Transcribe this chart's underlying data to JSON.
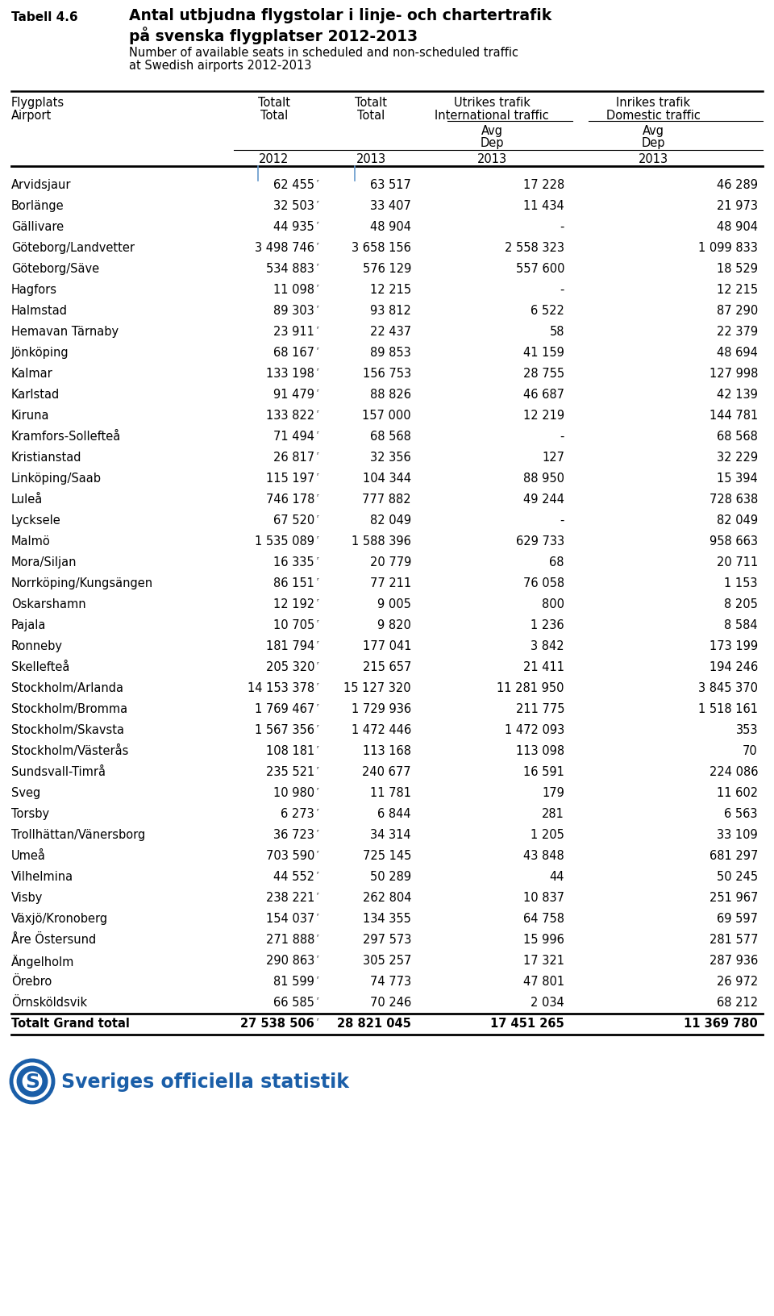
{
  "title_line1": "Antal utbjudna flygstolar i linje- och chartertrafik",
  "title_line2": "på svenska flygplatser 2012-2013",
  "subtitle1": "Number of available seats in scheduled and non-scheduled traffic",
  "subtitle2": "at Swedish airports 2012-2013",
  "table_label": "Tabell 4.6",
  "rows": [
    [
      "Arvidsjaur",
      "62 455",
      "r",
      "63 517",
      "17 228",
      "46 289"
    ],
    [
      "Borlänge",
      "32 503",
      "r",
      "33 407",
      "11 434",
      "21 973"
    ],
    [
      "Gällivare",
      "44 935",
      "r",
      "48 904",
      "-",
      "48 904"
    ],
    [
      "Göteborg/Landvetter",
      "3 498 746",
      "r",
      "3 658 156",
      "2 558 323",
      "1 099 833"
    ],
    [
      "Göteborg/Säve",
      "534 883",
      "r",
      "576 129",
      "557 600",
      "18 529"
    ],
    [
      "Hagfors",
      "11 098",
      "r",
      "12 215",
      "-",
      "12 215"
    ],
    [
      "Halmstad",
      "89 303",
      "r",
      "93 812",
      "6 522",
      "87 290"
    ],
    [
      "Hemavan Tärnaby",
      "23 911",
      "r",
      "22 437",
      "58",
      "22 379"
    ],
    [
      "Jönköping",
      "68 167",
      "r",
      "89 853",
      "41 159",
      "48 694"
    ],
    [
      "Kalmar",
      "133 198",
      "r",
      "156 753",
      "28 755",
      "127 998"
    ],
    [
      "Karlstad",
      "91 479",
      "r",
      "88 826",
      "46 687",
      "42 139"
    ],
    [
      "Kiruna",
      "133 822",
      "r",
      "157 000",
      "12 219",
      "144 781"
    ],
    [
      "Kramfors-Sollefteå",
      "71 494",
      "r",
      "68 568",
      "-",
      "68 568"
    ],
    [
      "Kristianstad",
      "26 817",
      "r",
      "32 356",
      "127",
      "32 229"
    ],
    [
      "Linköping/Saab",
      "115 197",
      "r",
      "104 344",
      "88 950",
      "15 394"
    ],
    [
      "Luleå",
      "746 178",
      "r",
      "777 882",
      "49 244",
      "728 638"
    ],
    [
      "Lycksele",
      "67 520",
      "r",
      "82 049",
      "-",
      "82 049"
    ],
    [
      "Malmö",
      "1 535 089",
      "r",
      "1 588 396",
      "629 733",
      "958 663"
    ],
    [
      "Mora/Siljan",
      "16 335",
      "r",
      "20 779",
      "68",
      "20 711"
    ],
    [
      "Norrköping/Kungsängen",
      "86 151",
      "r",
      "77 211",
      "76 058",
      "1 153"
    ],
    [
      "Oskarshamn",
      "12 192",
      "r",
      "9 005",
      "800",
      "8 205"
    ],
    [
      "Pajala",
      "10 705",
      "r",
      "9 820",
      "1 236",
      "8 584"
    ],
    [
      "Ronneby",
      "181 794",
      "r",
      "177 041",
      "3 842",
      "173 199"
    ],
    [
      "Skellefteå",
      "205 320",
      "r",
      "215 657",
      "21 411",
      "194 246"
    ],
    [
      "Stockholm/Arlanda",
      "14 153 378",
      "r",
      "15 127 320",
      "11 281 950",
      "3 845 370"
    ],
    [
      "Stockholm/Bromma",
      "1 769 467",
      "r",
      "1 729 936",
      "211 775",
      "1 518 161"
    ],
    [
      "Stockholm/Skavsta",
      "1 567 356",
      "r",
      "1 472 446",
      "1 472 093",
      "353"
    ],
    [
      "Stockholm/Västerås",
      "108 181",
      "r",
      "113 168",
      "113 098",
      "70"
    ],
    [
      "Sundsvall-Timrå",
      "235 521",
      "r",
      "240 677",
      "16 591",
      "224 086"
    ],
    [
      "Sveg",
      "10 980",
      "r",
      "11 781",
      "179",
      "11 602"
    ],
    [
      "Torsby",
      "6 273",
      "r",
      "6 844",
      "281",
      "6 563"
    ],
    [
      "Trollhättan/Vänersborg",
      "36 723",
      "r",
      "34 314",
      "1 205",
      "33 109"
    ],
    [
      "Umeå",
      "703 590",
      "r",
      "725 145",
      "43 848",
      "681 297"
    ],
    [
      "Vilhelmina",
      "44 552",
      "r",
      "50 289",
      "44",
      "50 245"
    ],
    [
      "Visby",
      "238 221",
      "r",
      "262 804",
      "10 837",
      "251 967"
    ],
    [
      "Växjö/Kronoberg",
      "154 037",
      "r",
      "134 355",
      "64 758",
      "69 597"
    ],
    [
      "Åre Östersund",
      "271 888",
      "r",
      "297 573",
      "15 996",
      "281 577"
    ],
    [
      "Ängelholm",
      "290 863",
      "r",
      "305 257",
      "17 321",
      "287 936"
    ],
    [
      "Örebro",
      "81 599",
      "r",
      "74 773",
      "47 801",
      "26 972"
    ],
    [
      "Örnsköldsvik",
      "66 585",
      "r",
      "70 246",
      "2 034",
      "68 212"
    ]
  ],
  "total_row": [
    "Totalt Grand total",
    "27 538 506",
    "r",
    "28 821 045",
    "17 451 265",
    "11 369 780"
  ],
  "bg_color": "#ffffff",
  "text_color": "#000000",
  "logo_text": "Sveriges officiella statistik",
  "logo_color": "#1a5ea8"
}
